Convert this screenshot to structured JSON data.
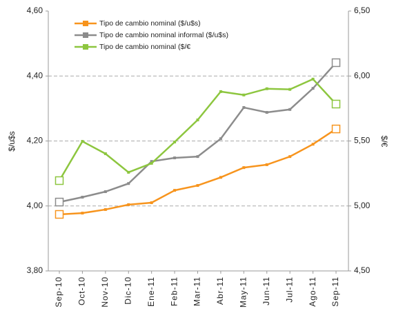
{
  "chart_data": {
    "type": "line",
    "categories": [
      "Sep-10",
      "Oct-10",
      "Nov-10",
      "Dic-10",
      "Ene-11",
      "Feb-11",
      "Mar-11",
      "Abr-11",
      "May-11",
      "Jun-11",
      "Jul-11",
      "Ago-11",
      "Sep-11"
    ],
    "ylabel": "$/u$s",
    "y2label": "$/€",
    "ylim": [
      3.8,
      4.6
    ],
    "yticks": [
      {
        "value": 3.8,
        "label": "3,80"
      },
      {
        "value": 4.0,
        "label": "4,00"
      },
      {
        "value": 4.2,
        "label": "4,20"
      },
      {
        "value": 4.4,
        "label": "4,40"
      },
      {
        "value": 4.6,
        "label": "4,60"
      }
    ],
    "y2lim": [
      4.5,
      6.5
    ],
    "y2ticks": [
      {
        "value": 4.5,
        "label": "4,50"
      },
      {
        "value": 5.0,
        "label": "5,00"
      },
      {
        "value": 5.5,
        "label": "5,50"
      },
      {
        "value": 6.0,
        "label": "6,00"
      },
      {
        "value": 6.5,
        "label": "6,50"
      }
    ],
    "grid": true,
    "series": [
      {
        "name": "Tipo de cambio nominal ($/u$s)",
        "color": "#f7941d",
        "values": [
          3.974,
          3.978,
          3.989,
          4.004,
          4.01,
          4.048,
          4.063,
          4.088,
          4.118,
          4.127,
          4.152,
          4.19,
          4.237
        ]
      },
      {
        "name": "Tipo de cambio nominal informal ($/u$s)",
        "color": "#8c8c8c",
        "values": [
          4.012,
          4.027,
          4.044,
          4.069,
          4.137,
          4.148,
          4.152,
          4.207,
          4.303,
          4.288,
          4.297,
          4.362,
          4.441
        ]
      },
      {
        "name": "Tipo de cambio nominal ($/€",
        "color": "#8dc63f",
        "axis": "y2",
        "values": [
          5.195,
          5.497,
          5.402,
          5.259,
          5.328,
          5.492,
          5.662,
          5.88,
          5.854,
          5.902,
          5.897,
          5.976,
          5.784
        ]
      }
    ]
  }
}
